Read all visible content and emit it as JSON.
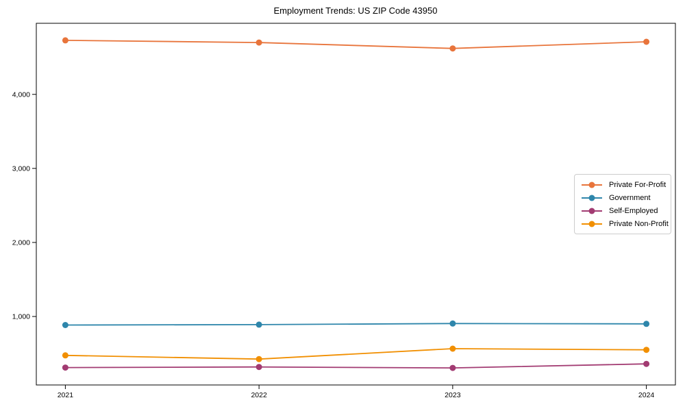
{
  "figure": {
    "background_color": "#ffffff",
    "text_color": "#000000",
    "spine_color": "#000000",
    "legend_border_color": "#cccccc"
  },
  "chart_data": {
    "type": "line",
    "title": "Employment Trends: US ZIP Code 43950",
    "categories": [
      2021,
      2022,
      2023,
      2024
    ],
    "series": [
      {
        "name": "Private For-Profit",
        "color": "#E8743B",
        "values": [
          4730,
          4700,
          4620,
          4710
        ]
      },
      {
        "name": "Government",
        "color": "#2E86AB",
        "values": [
          885,
          890,
          905,
          900
        ]
      },
      {
        "name": "Self-Employed",
        "color": "#A23B72",
        "values": [
          310,
          318,
          305,
          360
        ]
      },
      {
        "name": "Private Non-Profit",
        "color": "#F18F01",
        "values": [
          475,
          425,
          565,
          550
        ]
      }
    ],
    "xlabel": "",
    "ylabel": "",
    "xlim": [
      2020.85,
      2024.15
    ],
    "ylim": [
      75,
      4960
    ],
    "xticks": [
      2021,
      2022,
      2023,
      2024
    ],
    "xtick_labels": [
      "2021",
      "2022",
      "2023",
      "2024"
    ],
    "yticks": [
      1000,
      2000,
      3000,
      4000
    ],
    "ytick_labels": [
      "1,000",
      "2,000",
      "3,000",
      "4,000"
    ],
    "grid": false,
    "legend_position": "center-right",
    "marker": "circle",
    "line_width": 1.8,
    "marker_radius": 4.5
  }
}
